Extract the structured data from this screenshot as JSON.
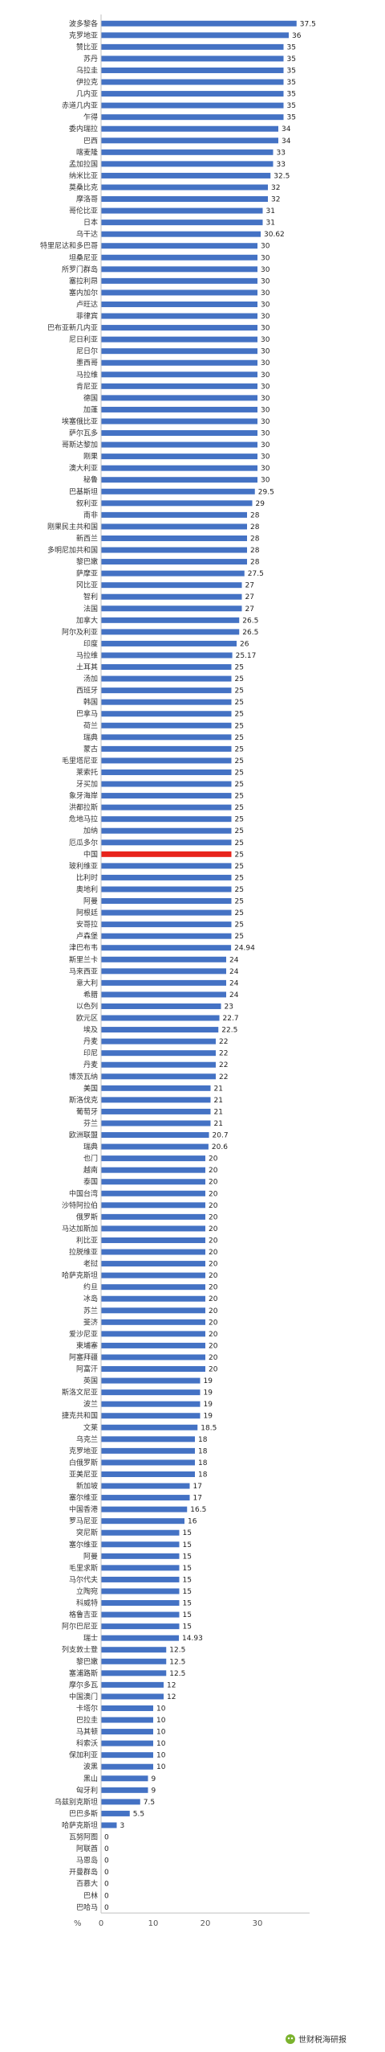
{
  "chart_data": {
    "type": "bar",
    "orientation": "horizontal",
    "categories": [
      "波多黎各",
      "克罗地亚",
      "赞比亚",
      "苏丹",
      "乌拉圭",
      "伊拉克",
      "几内亚",
      "赤道几内亚",
      "乍得",
      "委内瑞拉",
      "巴西",
      "喀麦隆",
      "孟加拉国",
      "纳米比亚",
      "莫桑比克",
      "摩洛哥",
      "哥伦比亚",
      "日本",
      "乌干达",
      "特里尼达和多巴哥",
      "坦桑尼亚",
      "所罗门群岛",
      "塞拉利昂",
      "塞内加尔",
      "卢旺达",
      "菲律宾",
      "巴布亚新几内亚",
      "尼日利亚",
      "尼日尔",
      "墨西哥",
      "马拉维",
      "肯尼亚",
      "德国",
      "加蓬",
      "埃塞俄比亚",
      "萨尔瓦多",
      "哥斯达黎加",
      "刚果",
      "澳大利亚",
      "秘鲁",
      "巴基斯坦",
      "叙利亚",
      "南非",
      "刚果民主共和国",
      "新西兰",
      "多明尼加共和国",
      "黎巴嫩",
      "萨摩亚",
      "冈比亚",
      "智利",
      "法国",
      "加拿大",
      "阿尔及利亚",
      "印度",
      "马拉维",
      "土耳其",
      "汤加",
      "西班牙",
      "韩国",
      "巴拿马",
      "荷兰",
      "瑞典",
      "蒙古",
      "毛里塔尼亚",
      "莱索托",
      "牙买加",
      "象牙海岸",
      "洪都拉斯",
      "危地马拉",
      "加纳",
      "厄瓜多尔",
      "中国",
      "玻利维亚",
      "比利时",
      "奥地利",
      "阿曼",
      "阿根廷",
      "安哥拉",
      "卢森堡",
      "津巴布韦",
      "斯里兰卡",
      "马来西亚",
      "意大利",
      "希腊",
      "以色列",
      "欧元区",
      "埃及",
      "丹麦",
      "印尼",
      "丹麦",
      "博茨瓦纳",
      "美国",
      "斯洛伐克",
      "葡萄牙",
      "芬兰",
      "欧洲联盟",
      "瑞典",
      "也门",
      "越南",
      "泰国",
      "中国台湾",
      "沙特阿拉伯",
      "俄罗斯",
      "马达加斯加",
      "利比亚",
      "拉脱维亚",
      "老挝",
      "哈萨克斯坦",
      "约旦",
      "冰岛",
      "苏兰",
      "斐济",
      "爱沙尼亚",
      "柬埔寨",
      "阿塞拜疆",
      "阿富汗",
      "英国",
      "斯洛文尼亚",
      "波兰",
      "捷克共和国",
      "文莱",
      "乌克兰",
      "克罗地亚",
      "白俄罗斯",
      "亚美尼亚",
      "新加坡",
      "塞尔维亚",
      "中国香港",
      "罗马尼亚",
      "突尼斯",
      "塞尔维亚",
      "阿曼",
      "毛里求斯",
      "马尔代夫",
      "立陶宛",
      "科威特",
      "格鲁吉亚",
      "阿尔巴尼亚",
      "瑞士",
      "列支敦士登",
      "黎巴嫩",
      "塞浦路斯",
      "摩尔多瓦",
      "中国澳门",
      "卡塔尔",
      "巴拉圭",
      "马其顿",
      "科索沃",
      "保加利亚",
      "波黑",
      "黑山",
      "匈牙利",
      "乌兹别克斯坦",
      "巴巴多斯",
      "哈萨克斯坦",
      "瓦努阿图",
      "阿联酋",
      "马恩岛",
      "开曼群岛",
      "百慕大",
      "巴林",
      "巴哈马"
    ],
    "values": [
      37.5,
      36,
      35,
      35,
      35,
      35,
      35,
      35,
      35,
      34,
      34,
      33,
      33,
      32.5,
      32,
      32,
      31,
      31,
      30.62,
      30,
      30,
      30,
      30,
      30,
      30,
      30,
      30,
      30,
      30,
      30,
      30,
      30,
      30,
      30,
      30,
      30,
      30,
      30,
      30,
      30,
      29.5,
      29,
      28,
      28,
      28,
      28,
      28,
      27.5,
      27,
      27,
      27,
      26.5,
      26.5,
      26,
      25.17,
      25,
      25,
      25,
      25,
      25,
      25,
      25,
      25,
      25,
      25,
      25,
      25,
      25,
      25,
      25,
      25,
      25,
      25,
      25,
      25,
      25,
      25,
      25,
      25,
      24.94,
      24,
      24,
      24,
      24,
      23,
      22.7,
      22.5,
      22,
      22,
      22,
      22,
      21,
      21,
      21,
      21,
      20.7,
      20.6,
      20,
      20,
      20,
      20,
      20,
      20,
      20,
      20,
      20,
      20,
      20,
      20,
      20,
      20,
      20,
      20,
      20,
      20,
      20,
      19,
      19,
      19,
      19,
      18.5,
      18,
      18,
      18,
      18,
      17,
      17,
      16.5,
      16,
      15,
      15,
      15,
      15,
      15,
      15,
      15,
      15,
      15,
      14.93,
      12.5,
      12.5,
      12.5,
      12,
      12,
      10,
      10,
      10,
      10,
      10,
      10,
      9,
      9,
      7.5,
      5.5,
      3,
      0,
      0,
      0,
      0,
      0,
      0,
      0
    ],
    "highlight_category_index": 71,
    "bar_color": "#4472c4",
    "highlight_color": "#e8241c",
    "xlim": [
      0,
      40
    ],
    "xticks": [
      0,
      10,
      20,
      30
    ],
    "x_unit": "%",
    "grid": false,
    "legend": "none"
  },
  "watermark": "世财税海研报"
}
